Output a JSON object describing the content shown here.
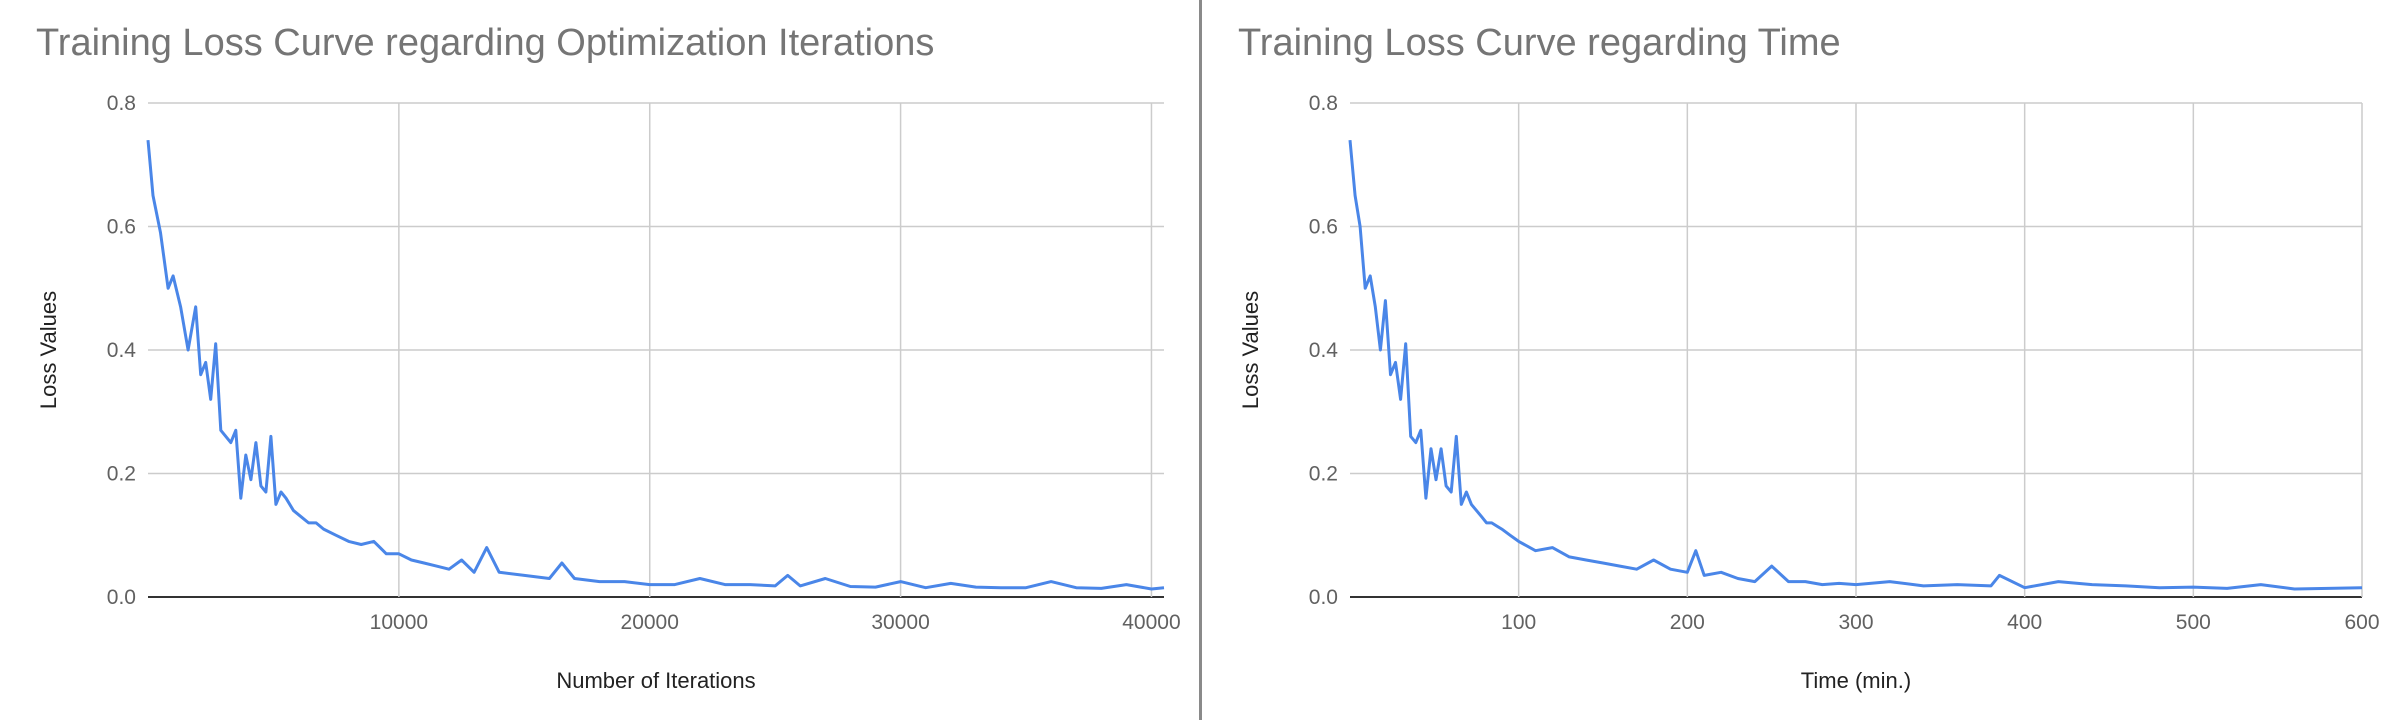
{
  "chart_data": [
    {
      "type": "line",
      "title": "Training Loss Curve regarding Optimization Iterations",
      "xlabel": "Number of Iterations",
      "ylabel": "Loss Values",
      "xlim": [
        0,
        40500
      ],
      "ylim": [
        0,
        0.8
      ],
      "xticks": [
        10000,
        20000,
        30000,
        40000
      ],
      "xtick_labels": [
        "10000",
        "20000",
        "30000",
        "40000"
      ],
      "yticks": [
        0,
        0.2,
        0.4,
        0.6,
        0.8
      ],
      "ytick_labels": [
        "0.0",
        "0.2",
        "0.4",
        "0.6",
        "0.8"
      ],
      "grid": true,
      "line_color": "#4a86e8",
      "series": [
        {
          "x": [
            0,
            200,
            500,
            800,
            1000,
            1300,
            1600,
            1900,
            2100,
            2300,
            2500,
            2700,
            2900,
            3100,
            3300,
            3500,
            3700,
            3900,
            4100,
            4300,
            4500,
            4700,
            4900,
            5100,
            5300,
            5500,
            5800,
            6100,
            6400,
            6700,
            7000,
            7500,
            8000,
            8500,
            9000,
            9500,
            10000,
            10500,
            11000,
            11500,
            12000,
            12500,
            13000,
            13500,
            14000,
            15000,
            16000,
            16500,
            17000,
            18000,
            19000,
            20000,
            21000,
            22000,
            23000,
            24000,
            25000,
            25500,
            26000,
            27000,
            28000,
            29000,
            30000,
            31000,
            32000,
            33000,
            34000,
            35000,
            36000,
            37000,
            38000,
            39000,
            40000,
            40500
          ],
          "y": [
            0.74,
            0.65,
            0.59,
            0.5,
            0.52,
            0.47,
            0.4,
            0.47,
            0.36,
            0.38,
            0.32,
            0.41,
            0.27,
            0.26,
            0.25,
            0.27,
            0.16,
            0.23,
            0.19,
            0.25,
            0.18,
            0.17,
            0.26,
            0.15,
            0.17,
            0.16,
            0.14,
            0.13,
            0.12,
            0.12,
            0.11,
            0.1,
            0.09,
            0.085,
            0.09,
            0.07,
            0.07,
            0.06,
            0.055,
            0.05,
            0.045,
            0.06,
            0.04,
            0.08,
            0.04,
            0.035,
            0.03,
            0.055,
            0.03,
            0.025,
            0.025,
            0.02,
            0.02,
            0.03,
            0.02,
            0.02,
            0.018,
            0.035,
            0.018,
            0.03,
            0.017,
            0.016,
            0.025,
            0.015,
            0.022,
            0.016,
            0.015,
            0.015,
            0.025,
            0.015,
            0.014,
            0.02,
            0.013,
            0.015
          ]
        }
      ]
    },
    {
      "type": "line",
      "title": "Training Loss Curve regarding Time",
      "xlabel": "Time (min.)",
      "ylabel": "Loss Values",
      "xlim": [
        0,
        600
      ],
      "ylim": [
        0,
        0.8
      ],
      "xticks": [
        100,
        200,
        300,
        400,
        500,
        600
      ],
      "xtick_labels": [
        "100",
        "200",
        "300",
        "400",
        "500",
        "600"
      ],
      "yticks": [
        0,
        0.2,
        0.4,
        0.6,
        0.8
      ],
      "ytick_labels": [
        "0.0",
        "0.2",
        "0.4",
        "0.6",
        "0.8"
      ],
      "grid": true,
      "line_color": "#4a86e8",
      "series": [
        {
          "x": [
            0,
            3,
            6,
            9,
            12,
            15,
            18,
            21,
            24,
            27,
            30,
            33,
            36,
            39,
            42,
            45,
            48,
            51,
            54,
            57,
            60,
            63,
            66,
            69,
            72,
            75,
            78,
            81,
            84,
            87,
            90,
            95,
            100,
            110,
            120,
            130,
            140,
            150,
            160,
            170,
            180,
            190,
            200,
            205,
            210,
            220,
            230,
            240,
            250,
            260,
            270,
            280,
            290,
            300,
            320,
            340,
            360,
            380,
            385,
            400,
            420,
            440,
            460,
            480,
            500,
            520,
            540,
            560,
            580,
            600
          ],
          "y": [
            0.74,
            0.65,
            0.6,
            0.5,
            0.52,
            0.47,
            0.4,
            0.48,
            0.36,
            0.38,
            0.32,
            0.41,
            0.26,
            0.25,
            0.27,
            0.16,
            0.24,
            0.19,
            0.24,
            0.18,
            0.17,
            0.26,
            0.15,
            0.17,
            0.15,
            0.14,
            0.13,
            0.12,
            0.12,
            0.115,
            0.11,
            0.1,
            0.09,
            0.075,
            0.08,
            0.065,
            0.06,
            0.055,
            0.05,
            0.045,
            0.06,
            0.045,
            0.04,
            0.075,
            0.035,
            0.04,
            0.03,
            0.025,
            0.05,
            0.025,
            0.025,
            0.02,
            0.022,
            0.02,
            0.025,
            0.018,
            0.02,
            0.018,
            0.035,
            0.015,
            0.025,
            0.02,
            0.018,
            0.015,
            0.016,
            0.014,
            0.02,
            0.013,
            0.014,
            0.015
          ]
        }
      ]
    }
  ]
}
